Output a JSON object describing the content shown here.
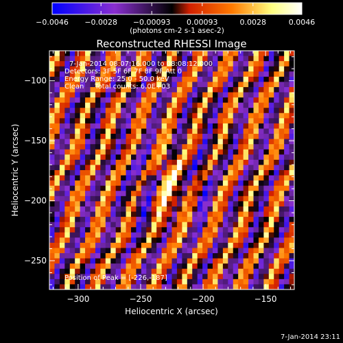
{
  "chart_data": {
    "type": "heatmap",
    "title": "Reconstructed RHESSI Image",
    "xlabel": "Heliocentric X (arcsec)",
    "ylabel": "Heliocentric Y (arcsec)",
    "xlim": [
      -323,
      -127
    ],
    "ylim": [
      -274,
      -75
    ],
    "x_ticks": [
      -300,
      -250,
      -200,
      -150
    ],
    "y_ticks": [
      -100,
      -150,
      -200,
      -250
    ],
    "colorbar": {
      "min": -0.0046,
      "max": 0.0046,
      "tick_values": [
        -0.0046,
        -0.0028,
        -0.00093,
        0.00093,
        0.0028,
        0.0046
      ],
      "tick_labels": [
        "-0.0046",
        "-0.0028",
        "-0.00093",
        "0.00093",
        "0.0028",
        "0.0046"
      ],
      "unit_label": "(photons cm-2 s-1 asec-2)",
      "colormap": "blue-purple-red-yellow-white",
      "colors": [
        "#0000ff",
        "#8a2fd0",
        "#000000",
        "#d22000",
        "#ff7a00",
        "#ffff80",
        "#ffffff"
      ]
    },
    "annotations": [
      "7-Jan-2014 08:07:16.000 to 08:08:12.000",
      "Detectors: 3F 5F 6F 7F 8F 9F  Att 0",
      "Energy Range: 25.0 - 50.0 keV",
      "Clean     Total counts: 6.0E+03",
      "Position of Peak = [-226,-187]"
    ],
    "peak": {
      "x": -226,
      "y": -187,
      "value": 0.0046
    }
  },
  "footer": {
    "timestamp": "7-Jan-2014 23:11"
  }
}
